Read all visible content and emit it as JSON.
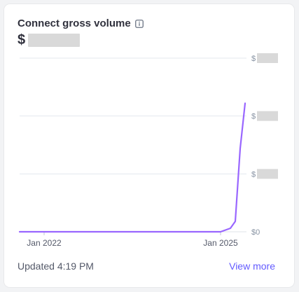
{
  "header": {
    "title": "Connect gross volume",
    "info_icon": "info-icon",
    "currency_symbol": "$"
  },
  "chart_data": {
    "type": "line",
    "x": [
      "2021-08",
      "2021-12",
      "2022-06",
      "2023-01",
      "2023-06",
      "2024-01",
      "2024-06",
      "2024-12",
      "2025-01",
      "2025-03",
      "2025-04",
      "2025-05",
      "2025-06"
    ],
    "series": [
      {
        "values": [
          0,
          0,
          0,
          0,
          0,
          0,
          0,
          0,
          0,
          0.02,
          0.06,
          0.48,
          0.74
        ]
      }
    ],
    "xtick_labels": [
      "Jan 2022",
      "Jan 2025"
    ],
    "ytick_labels": [
      "$",
      "$",
      "$",
      "$0"
    ],
    "ylim": [
      0,
      1
    ],
    "grid": true,
    "line_color": "#9966ff"
  },
  "footer": {
    "updated_text": "Updated 4:19 PM",
    "view_more_label": "View more"
  },
  "colors": {
    "accent": "#635bff",
    "line": "#9966ff",
    "grid": "#e3e8ee",
    "redaction": "#d9d9d9"
  }
}
